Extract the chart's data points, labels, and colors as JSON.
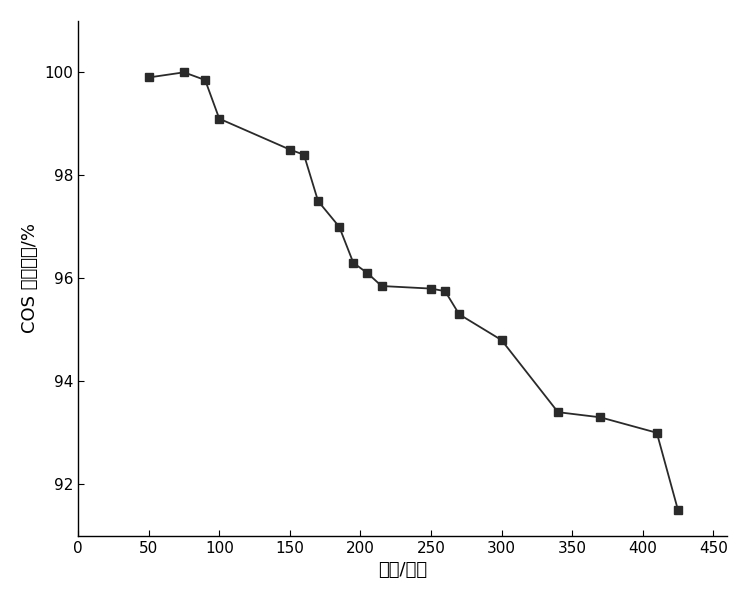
{
  "x": [
    50,
    75,
    90,
    100,
    150,
    160,
    170,
    185,
    195,
    205,
    215,
    250,
    260,
    270,
    300,
    340,
    370,
    410,
    425
  ],
  "y": [
    99.9,
    100.0,
    99.85,
    99.1,
    98.5,
    98.4,
    97.5,
    97.0,
    96.3,
    96.1,
    95.85,
    95.8,
    95.75,
    95.3,
    94.8,
    93.4,
    93.3,
    93.0,
    91.5
  ],
  "xlabel": "时间/分钟",
  "ylabel": "COS 去除效率/%",
  "xlim": [
    0,
    460
  ],
  "ylim": [
    91,
    101
  ],
  "xticks": [
    0,
    50,
    100,
    150,
    200,
    250,
    300,
    350,
    400,
    450
  ],
  "yticks": [
    92,
    94,
    96,
    98,
    100
  ],
  "line_color": "#2a2a2a",
  "marker": "s",
  "marker_size": 6,
  "marker_facecolor": "#2a2a2a",
  "linewidth": 1.3,
  "background_color": "#ffffff",
  "figsize": [
    7.5,
    6.0
  ],
  "dpi": 100
}
